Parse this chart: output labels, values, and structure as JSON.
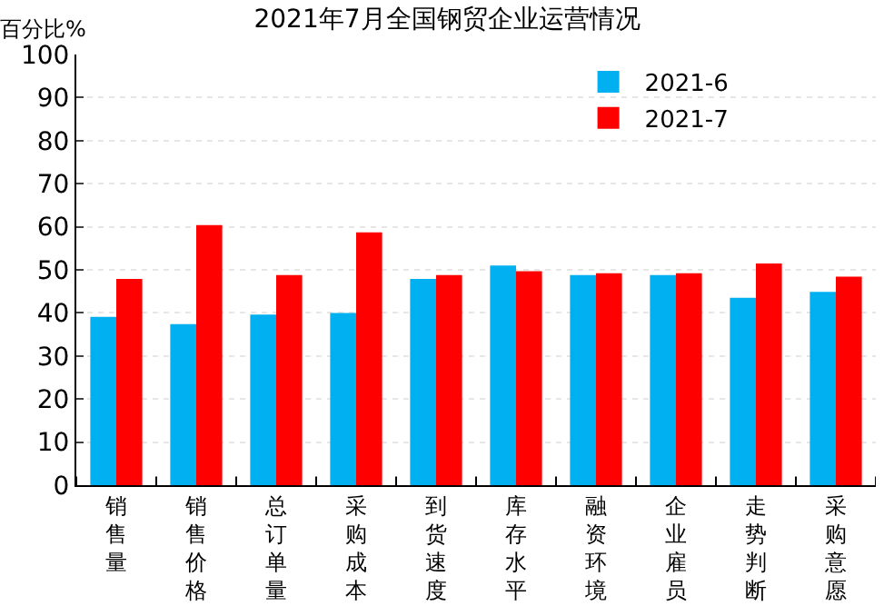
{
  "chart_data": {
    "type": "bar",
    "title": "2021年7月全国钢贸企业运营情况",
    "ylabel": "百分比%",
    "categories": [
      "销售量",
      "销售价格",
      "总订单量",
      "采购成本",
      "到货速度",
      "库存水平",
      "融资环境",
      "企业雇员",
      "走势判断",
      "采购意愿"
    ],
    "series": [
      {
        "name": "2021-6",
        "color": "#00b0f0",
        "values": [
          39.1,
          37.4,
          39.6,
          40.0,
          47.9,
          51.0,
          48.8,
          48.8,
          43.5,
          44.9
        ]
      },
      {
        "name": "2021-7",
        "color": "#ff0000",
        "values": [
          47.9,
          60.4,
          48.8,
          58.7,
          48.8,
          49.7,
          49.2,
          49.2,
          51.5,
          48.4
        ]
      }
    ],
    "ylim": [
      0,
      100
    ],
    "yticks": [
      0,
      10,
      20,
      30,
      40,
      50,
      60,
      70,
      80,
      90,
      100
    ],
    "grid": "y",
    "legend": "top right"
  }
}
